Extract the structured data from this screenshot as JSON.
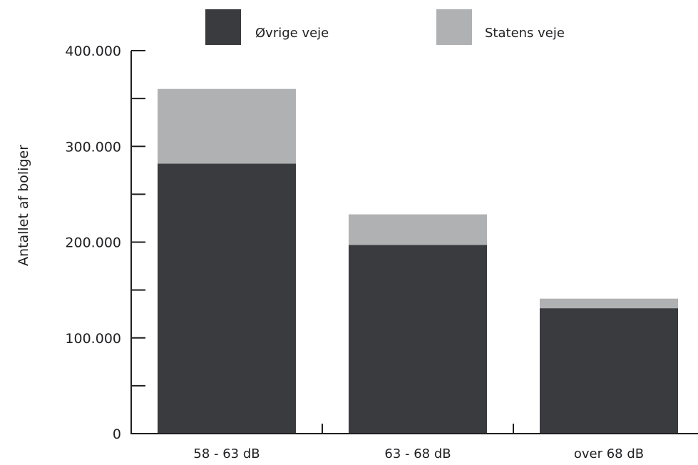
{
  "chart_data": {
    "type": "bar",
    "stacked": true,
    "categories": [
      "58 - 63 dB",
      "63 - 68 dB",
      "over 68 dB"
    ],
    "series": [
      {
        "name": "Øvrige veje",
        "values": [
          282000,
          197000,
          131000
        ],
        "color": "#3a3b3f"
      },
      {
        "name": "Statens veje",
        "values": [
          78000,
          32000,
          10000
        ],
        "color": "#b0b1b3"
      }
    ],
    "title": "",
    "xlabel": "",
    "ylabel": "Antallet af boliger",
    "ylim": [
      0,
      400000
    ],
    "yticks": [
      {
        "value": 0,
        "label": "0"
      },
      {
        "value": 100000,
        "label": "100.000"
      },
      {
        "value": 200000,
        "label": "200.000"
      },
      {
        "value": 300000,
        "label": "300.000"
      },
      {
        "value": 400000,
        "label": "400.000"
      }
    ],
    "minor_tick_values": [
      50000,
      150000,
      250000,
      350000
    ],
    "grid": false,
    "legend_position": "top-center"
  }
}
